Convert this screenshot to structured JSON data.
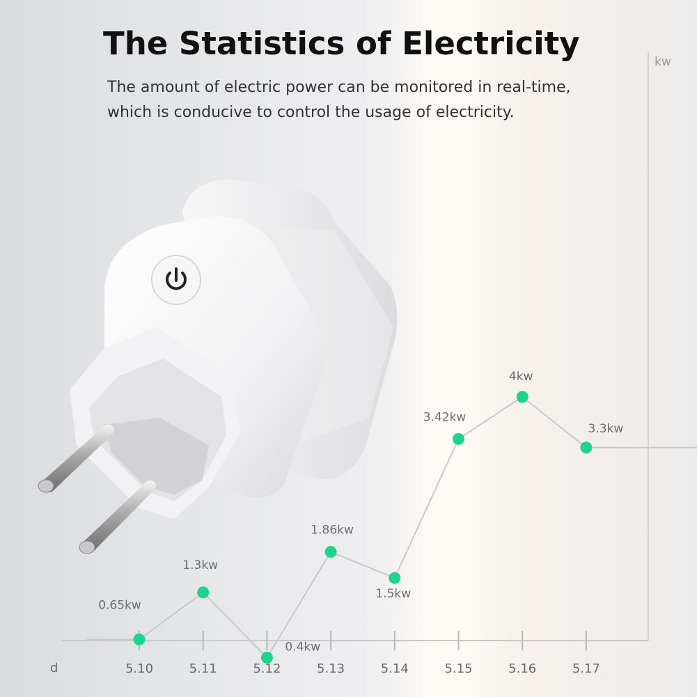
{
  "header": {
    "title": "The Statistics of Electricity",
    "subtitle_line1": "The amount of electric power can be monitored in real-time,",
    "subtitle_line2": "which is conducive to control the usage of electricity."
  },
  "chart_data": {
    "type": "line",
    "title": "The Statistics of Electricity",
    "xlabel": "d",
    "ylabel": "kw",
    "categories": [
      "5.10",
      "5.11",
      "5.12",
      "5.13",
      "5.14",
      "5.15",
      "5.16",
      "5.17"
    ],
    "series": [
      {
        "values": [
          0.65,
          1.3,
          0.4,
          1.86,
          1.5,
          3.42,
          4,
          3.3
        ],
        "labels": [
          "0.65kw",
          "1.3kw",
          "0.4kw",
          "1.86kw",
          "1.5kw",
          "3.42kw",
          "4kw",
          "3.3kw"
        ]
      }
    ],
    "grid": false,
    "marker_color": "#1fd38e",
    "line_color": "#c8c8c8"
  },
  "product": {
    "device": "smart-plug",
    "icon": "power-icon"
  }
}
